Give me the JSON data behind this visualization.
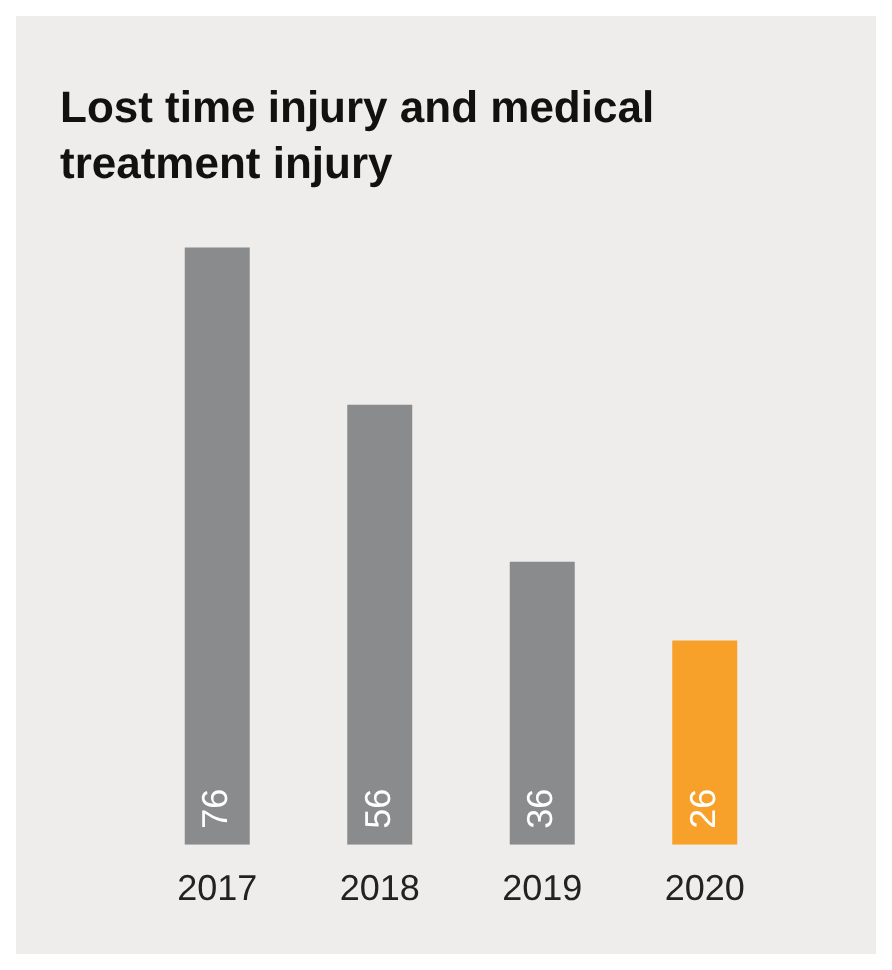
{
  "chart_data": {
    "type": "bar",
    "title": "Lost time injury and medical treatment injury",
    "categories": [
      "2017",
      "2018",
      "2019",
      "2020"
    ],
    "values": [
      76,
      56,
      36,
      26
    ],
    "colors": [
      "#8a8b8d",
      "#8a8b8d",
      "#8a8b8d",
      "#f7a12b"
    ],
    "data_labels": true,
    "grid": false,
    "legend": false
  }
}
